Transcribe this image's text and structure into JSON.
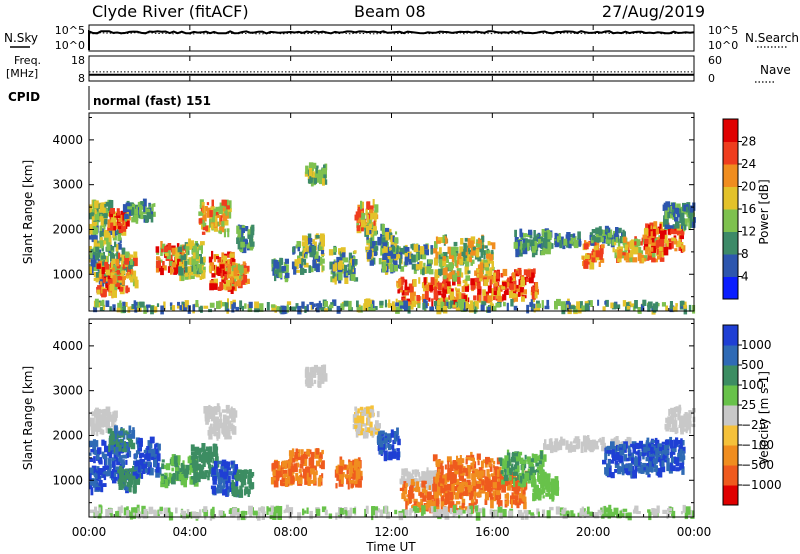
{
  "header": {
    "title": "Clyde River (fitACF)",
    "beam": "Beam 08",
    "date": "27/Aug/2019"
  },
  "chart_data": [
    {
      "type": "line",
      "panel": "noise",
      "left_label": "N.Sky",
      "right_label": "N.Search",
      "left_ticks": [
        "10^5",
        "10^0"
      ],
      "right_ticks": [
        "10^5",
        "10^0"
      ],
      "series": [
        {
          "name": "N.Sky",
          "style": "solid",
          "level": 0.72
        },
        {
          "name": "N.Search",
          "style": "dotted",
          "level": 0.72
        }
      ]
    },
    {
      "type": "line",
      "panel": "frequency",
      "left_label_lines": [
        "Freq.",
        "[MHz]"
      ],
      "right_label": "Nave",
      "left_ticks": [
        18,
        8
      ],
      "right_ticks": [
        60,
        0
      ],
      "series": [
        {
          "name": "Freq.",
          "style": "solid",
          "value": 10.5
        },
        {
          "name": "Nave",
          "style": "dotted",
          "value": 22
        }
      ]
    },
    {
      "type": "table",
      "panel": "cpid",
      "label": "CPID",
      "value": "normal (fast) 151"
    },
    {
      "type": "heatmap",
      "panel": "power",
      "ylabel": "Slant Range [km]",
      "yticks": [
        1000,
        2000,
        3000,
        4000
      ],
      "ylim": [
        180,
        4600
      ],
      "colorbar_label": "Power [dB]",
      "colorbar_ticks": [
        "4",
        "8",
        "12",
        "16",
        "20",
        "24",
        "28"
      ],
      "colors": [
        "#0a1eff",
        "#2d56ae",
        "#3d8a68",
        "#7ec14f",
        "#e3c22a",
        "#f08d1f",
        "#ef3d1e",
        "#e00000"
      ],
      "blobs": [
        {
          "t": 0.5,
          "r": 2350,
          "dt": 0.45,
          "dr": 260,
          "c": [
            2,
            4
          ]
        },
        {
          "t": 0.7,
          "r": 1450,
          "dt": 0.7,
          "dr": 650,
          "c": [
            1,
            4
          ]
        },
        {
          "t": 0.85,
          "r": 900,
          "dt": 0.5,
          "dr": 350,
          "c": [
            4,
            7
          ]
        },
        {
          "t": 1.2,
          "r": 2200,
          "dt": 0.4,
          "dr": 220,
          "c": [
            4,
            7
          ]
        },
        {
          "t": 1.4,
          "r": 1050,
          "dt": 0.5,
          "dr": 400,
          "c": [
            2,
            6
          ]
        },
        {
          "t": 2.0,
          "r": 2400,
          "dt": 0.6,
          "dr": 200,
          "c": [
            1,
            3
          ]
        },
        {
          "t": 3.3,
          "r": 1350,
          "dt": 0.6,
          "dr": 300,
          "c": [
            3,
            7
          ]
        },
        {
          "t": 4.1,
          "r": 1300,
          "dt": 0.5,
          "dr": 400,
          "c": [
            2,
            4
          ]
        },
        {
          "t": 5.0,
          "r": 2250,
          "dt": 0.6,
          "dr": 350,
          "c": [
            3,
            6
          ]
        },
        {
          "t": 5.3,
          "r": 1050,
          "dt": 0.5,
          "dr": 400,
          "c": [
            4,
            7
          ]
        },
        {
          "t": 5.9,
          "r": 1000,
          "dt": 0.4,
          "dr": 250,
          "c": [
            3,
            6
          ]
        },
        {
          "t": 6.2,
          "r": 1800,
          "dt": 0.3,
          "dr": 250,
          "c": [
            1,
            3
          ]
        },
        {
          "t": 7.6,
          "r": 1100,
          "dt": 0.3,
          "dr": 200,
          "c": [
            1,
            3
          ]
        },
        {
          "t": 8.7,
          "r": 1450,
          "dt": 0.6,
          "dr": 400,
          "c": [
            1,
            4
          ]
        },
        {
          "t": 9.0,
          "r": 3250,
          "dt": 0.4,
          "dr": 200,
          "c": [
            2,
            4
          ]
        },
        {
          "t": 10.1,
          "r": 1200,
          "dt": 0.5,
          "dr": 350,
          "c": [
            1,
            4
          ]
        },
        {
          "t": 11.0,
          "r": 2300,
          "dt": 0.4,
          "dr": 300,
          "c": [
            3,
            6
          ]
        },
        {
          "t": 11.6,
          "r": 1650,
          "dt": 0.6,
          "dr": 400,
          "c": [
            1,
            4
          ]
        },
        {
          "t": 12.6,
          "r": 1350,
          "dt": 1.0,
          "dr": 300,
          "c": [
            1,
            4
          ]
        },
        {
          "t": 13.6,
          "r": 600,
          "dt": 1.4,
          "dr": 280,
          "c": [
            4,
            7
          ]
        },
        {
          "t": 14.9,
          "r": 1350,
          "dt": 1.2,
          "dr": 450,
          "c": [
            2,
            5
          ]
        },
        {
          "t": 16.5,
          "r": 750,
          "dt": 1.3,
          "dr": 320,
          "c": [
            4,
            7
          ]
        },
        {
          "t": 17.6,
          "r": 1700,
          "dt": 0.7,
          "dr": 250,
          "c": [
            1,
            3
          ]
        },
        {
          "t": 18.6,
          "r": 1750,
          "dt": 0.9,
          "dr": 120,
          "c": [
            1,
            3
          ]
        },
        {
          "t": 20.0,
          "r": 1450,
          "dt": 0.4,
          "dr": 250,
          "c": [
            4,
            6
          ]
        },
        {
          "t": 20.6,
          "r": 1850,
          "dt": 0.7,
          "dr": 150,
          "c": [
            1,
            3
          ]
        },
        {
          "t": 21.8,
          "r": 1550,
          "dt": 1.0,
          "dr": 250,
          "c": [
            3,
            6
          ]
        },
        {
          "t": 22.8,
          "r": 1800,
          "dt": 0.8,
          "dr": 300,
          "c": [
            4,
            7
          ]
        },
        {
          "t": 23.4,
          "r": 2300,
          "dt": 0.6,
          "dr": 250,
          "c": [
            1,
            3
          ]
        },
        {
          "t": 12.0,
          "r": 280,
          "dt": 12.0,
          "dr": 90,
          "c": [
            1,
            4
          ]
        }
      ]
    },
    {
      "type": "heatmap",
      "panel": "velocity",
      "ylabel": "Slant Range [km]",
      "yticks": [
        1000,
        2000,
        3000,
        4000
      ],
      "ylim": [
        180,
        4600
      ],
      "colorbar_label": "Velocity [m s-1]",
      "colorbar_ticks": [
        "1000",
        "500",
        "100",
        "25",
        "−25",
        "−100",
        "−500",
        "−1000"
      ],
      "colors": [
        "#1f3fd4",
        "#2f6ab5",
        "#3c8d62",
        "#68c24a",
        "#c8c8c8",
        "#f5c13a",
        "#f08d1f",
        "#ef5a1e",
        "#e00000"
      ],
      "blobs": [
        {
          "t": 0.6,
          "r": 2300,
          "dt": 0.5,
          "dr": 250,
          "c": [
            4,
            4
          ]
        },
        {
          "t": 0.8,
          "r": 1300,
          "dt": 0.8,
          "dr": 550,
          "c": [
            0,
            1
          ]
        },
        {
          "t": 1.3,
          "r": 1900,
          "dt": 0.5,
          "dr": 250,
          "c": [
            1,
            2
          ]
        },
        {
          "t": 1.6,
          "r": 1000,
          "dt": 0.4,
          "dr": 250,
          "c": [
            2,
            2
          ]
        },
        {
          "t": 2.3,
          "r": 1500,
          "dt": 0.5,
          "dr": 400,
          "c": [
            0,
            1
          ]
        },
        {
          "t": 3.6,
          "r": 1200,
          "dt": 0.7,
          "dr": 300,
          "c": [
            2,
            3
          ]
        },
        {
          "t": 4.6,
          "r": 1400,
          "dt": 0.5,
          "dr": 350,
          "c": [
            2,
            2
          ]
        },
        {
          "t": 5.2,
          "r": 2300,
          "dt": 0.6,
          "dr": 350,
          "c": [
            4,
            4
          ]
        },
        {
          "t": 5.4,
          "r": 1050,
          "dt": 0.5,
          "dr": 350,
          "c": [
            0,
            1
          ]
        },
        {
          "t": 6.1,
          "r": 950,
          "dt": 0.4,
          "dr": 250,
          "c": [
            2,
            2
          ]
        },
        {
          "t": 7.7,
          "r": 1150,
          "dt": 0.4,
          "dr": 250,
          "c": [
            6,
            7
          ]
        },
        {
          "t": 8.6,
          "r": 1300,
          "dt": 0.7,
          "dr": 350,
          "c": [
            6,
            7
          ]
        },
        {
          "t": 9.0,
          "r": 3300,
          "dt": 0.4,
          "dr": 200,
          "c": [
            4,
            4
          ]
        },
        {
          "t": 10.3,
          "r": 1150,
          "dt": 0.5,
          "dr": 300,
          "c": [
            6,
            7
          ]
        },
        {
          "t": 11.0,
          "r": 2300,
          "dt": 0.5,
          "dr": 300,
          "c": [
            4,
            5
          ]
        },
        {
          "t": 11.9,
          "r": 1800,
          "dt": 0.4,
          "dr": 300,
          "c": [
            0,
            1
          ]
        },
        {
          "t": 13.2,
          "r": 1000,
          "dt": 0.8,
          "dr": 200,
          "c": [
            4,
            4
          ]
        },
        {
          "t": 13.9,
          "r": 650,
          "dt": 1.5,
          "dr": 320,
          "c": [
            6,
            7
          ]
        },
        {
          "t": 15.0,
          "r": 1100,
          "dt": 1.3,
          "dr": 450,
          "c": [
            6,
            7
          ]
        },
        {
          "t": 16.4,
          "r": 800,
          "dt": 1.0,
          "dr": 380,
          "c": [
            6,
            7
          ]
        },
        {
          "t": 17.2,
          "r": 1250,
          "dt": 0.9,
          "dr": 350,
          "c": [
            2,
            3
          ]
        },
        {
          "t": 18.1,
          "r": 900,
          "dt": 0.5,
          "dr": 300,
          "c": [
            3,
            3
          ]
        },
        {
          "t": 19.8,
          "r": 1800,
          "dt": 1.8,
          "dr": 120,
          "c": [
            4,
            4
          ]
        },
        {
          "t": 21.6,
          "r": 1450,
          "dt": 1.2,
          "dr": 350,
          "c": [
            0,
            1
          ]
        },
        {
          "t": 22.8,
          "r": 1550,
          "dt": 0.8,
          "dr": 350,
          "c": [
            0,
            1
          ]
        },
        {
          "t": 23.5,
          "r": 2350,
          "dt": 0.6,
          "dr": 250,
          "c": [
            4,
            4
          ]
        },
        {
          "t": 12.0,
          "r": 280,
          "dt": 12.0,
          "dr": 90,
          "c": [
            3,
            4
          ]
        }
      ]
    }
  ],
  "xaxis": {
    "xlabel": "Time UT",
    "xlim": [
      0,
      24
    ],
    "ticks": [
      {
        "v": 0,
        "label": "00:00"
      },
      {
        "v": 4,
        "label": "04:00"
      },
      {
        "v": 8,
        "label": "08:00"
      },
      {
        "v": 12,
        "label": "12:00"
      },
      {
        "v": 16,
        "label": "16:00"
      },
      {
        "v": 20,
        "label": "20:00"
      },
      {
        "v": 24,
        "label": "00:00"
      }
    ]
  }
}
